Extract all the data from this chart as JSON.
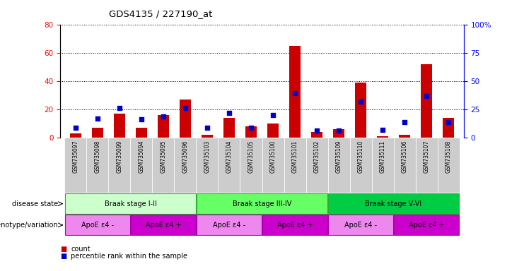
{
  "title": "GDS4135 / 227190_at",
  "samples": [
    "GSM735097",
    "GSM735098",
    "GSM735099",
    "GSM735094",
    "GSM735095",
    "GSM735096",
    "GSM735103",
    "GSM735104",
    "GSM735105",
    "GSM735100",
    "GSM735101",
    "GSM735102",
    "GSM735109",
    "GSM735110",
    "GSM735111",
    "GSM735106",
    "GSM735107",
    "GSM735108"
  ],
  "counts": [
    3,
    7,
    17,
    7,
    16,
    27,
    2,
    14,
    8,
    10,
    65,
    4,
    6,
    39,
    1,
    2,
    52,
    14
  ],
  "percentiles": [
    9,
    17,
    26,
    16,
    19,
    26,
    9,
    22,
    9,
    20,
    39,
    6,
    6,
    32,
    7,
    14,
    37,
    14
  ],
  "ylim_left": [
    0,
    80
  ],
  "ylim_right": [
    0,
    100
  ],
  "yticks_left": [
    0,
    20,
    40,
    60,
    80
  ],
  "yticks_right": [
    0,
    25,
    50,
    75,
    100
  ],
  "bar_color": "#cc0000",
  "dot_color": "#0000cc",
  "disease_state_labels": [
    "Braak stage I-II",
    "Braak stage III-IV",
    "Braak stage V-VI"
  ],
  "disease_state_ranges": [
    [
      0,
      6
    ],
    [
      6,
      12
    ],
    [
      12,
      18
    ]
  ],
  "disease_state_colors": [
    "#ccffcc",
    "#66ff66",
    "#00cc44"
  ],
  "genotype_labels": [
    "ApoE ε4 -",
    "ApoE ε4 +",
    "ApoE ε4 -",
    "ApoE ε4 +",
    "ApoE ε4 -",
    "ApoE ε4 +"
  ],
  "genotype_ranges": [
    [
      0,
      3
    ],
    [
      3,
      6
    ],
    [
      6,
      9
    ],
    [
      9,
      12
    ],
    [
      12,
      15
    ],
    [
      15,
      18
    ]
  ],
  "genotype_color_neg": "#ee88ee",
  "genotype_color_pos": "#cc00cc",
  "legend_count_label": "count",
  "legend_pct_label": "percentile rank within the sample",
  "bar_width": 0.5,
  "dot_size": 18
}
